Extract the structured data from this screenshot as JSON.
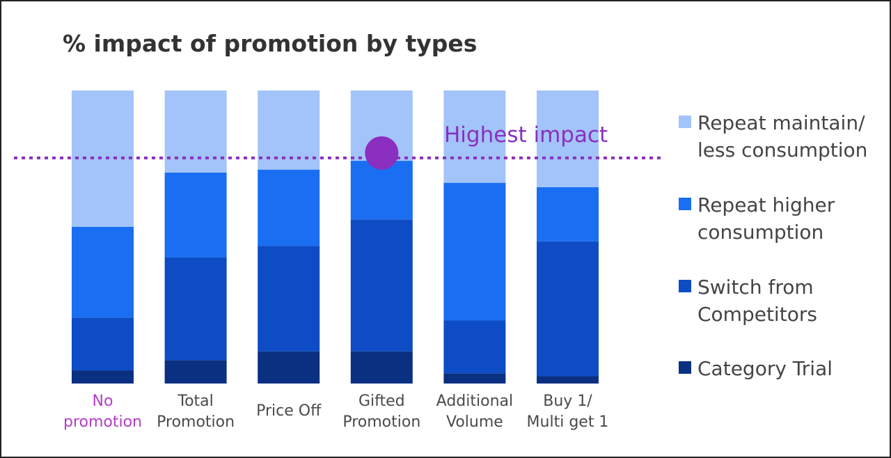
{
  "chart_data": {
    "type": "bar",
    "stacked": true,
    "title": "% impact of promotion by types",
    "categories": [
      {
        "lines": [
          "No",
          "promotion"
        ],
        "highlight": true
      },
      {
        "lines": [
          "Total",
          "Promotion"
        ],
        "highlight": false
      },
      {
        "lines": [
          "Price Off"
        ],
        "highlight": false
      },
      {
        "lines": [
          "Gifted",
          "Promotion"
        ],
        "highlight": false
      },
      {
        "lines": [
          "Additional",
          "Volume"
        ],
        "highlight": false
      },
      {
        "lines": [
          "Buy 1/",
          "Multi get 1"
        ],
        "highlight": false
      }
    ],
    "series": [
      {
        "name": "Category Trial",
        "color": "#0a3082",
        "values": [
          4.5,
          8,
          11,
          11,
          3.5,
          2.5
        ]
      },
      {
        "name": "Switch from Competitors",
        "color": "#0d4cc4",
        "values": [
          18,
          35,
          36,
          45,
          18,
          46
        ]
      },
      {
        "name": "Repeat higher consumption",
        "color": "#1a6ef2",
        "values": [
          31,
          29,
          26,
          20,
          47,
          18.5
        ]
      },
      {
        "name": "Repeat maintain/ less consumption",
        "color": "#a3c4fb",
        "values": [
          46.5,
          28,
          27,
          24,
          31.5,
          33
        ]
      }
    ],
    "legend_order": [
      {
        "lines": [
          "Repeat maintain/",
          "less consumption"
        ],
        "color": "#a3c4fb"
      },
      {
        "lines": [
          "Repeat higher",
          "consumption"
        ],
        "color": "#1a6ef2"
      },
      {
        "lines": [
          "Switch from",
          "Competitors"
        ],
        "color": "#0d4cc4"
      },
      {
        "lines": [
          "Category Trial"
        ],
        "color": "#0a3082"
      }
    ],
    "legend_placement": "right",
    "ylim": [
      0,
      100
    ],
    "grid": false,
    "annotation": {
      "text": "Highest impact",
      "reference_value": 77,
      "marker_category_index": 3,
      "color": "#8a2fc0"
    },
    "highlight_color": "#b43cc8"
  }
}
